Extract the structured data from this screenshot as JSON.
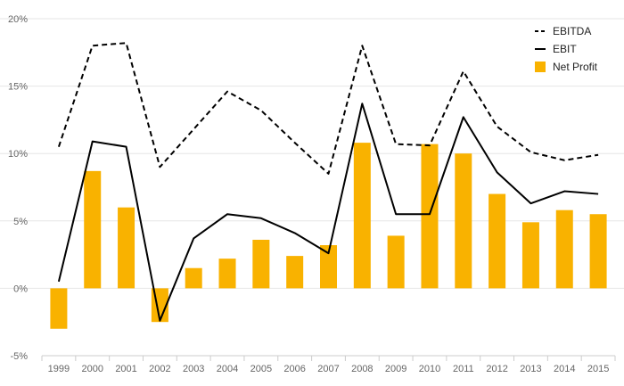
{
  "chart_data": {
    "type": "bar",
    "categories": [
      "1999",
      "2000",
      "2001",
      "2002",
      "2003",
      "2004",
      "2005",
      "2006",
      "2007",
      "2008",
      "2009",
      "2010",
      "2011",
      "2012",
      "2013",
      "2014",
      "2015"
    ],
    "series": [
      {
        "name": "EBITDA",
        "kind": "line",
        "style": "dashed",
        "color": "#000000",
        "values": [
          10.5,
          18.0,
          18.2,
          9.0,
          11.8,
          14.6,
          13.2,
          10.8,
          8.5,
          18.0,
          10.7,
          10.6,
          16.1,
          12.0,
          10.1,
          9.5,
          9.9
        ]
      },
      {
        "name": "EBIT",
        "kind": "line",
        "style": "solid",
        "color": "#000000",
        "values": [
          0.5,
          10.9,
          10.5,
          -2.4,
          3.7,
          5.5,
          5.2,
          4.1,
          2.6,
          13.7,
          5.5,
          5.5,
          12.7,
          8.6,
          6.3,
          7.2,
          7.0
        ]
      },
      {
        "name": "Net Profit",
        "kind": "bar",
        "color": "#F9B200",
        "values": [
          -3.0,
          8.7,
          6.0,
          -2.5,
          1.5,
          2.2,
          3.6,
          2.4,
          3.2,
          10.8,
          3.9,
          10.7,
          10.0,
          7.0,
          4.9,
          5.8,
          5.5
        ]
      }
    ],
    "y_ticks": [
      "20%",
      "15%",
      "10%",
      "5%",
      "0%",
      "-5%"
    ],
    "y_tick_values": [
      20,
      15,
      10,
      5,
      0,
      -5
    ],
    "ylim": [
      -5,
      20
    ],
    "xlabel": "",
    "ylabel": "",
    "title": "",
    "grid": true,
    "legend_position": "top-right",
    "colors": {
      "bar": "#F9B200",
      "grid": "#e6e6e6",
      "axis": "#cccccc",
      "tick_text": "#666666",
      "line": "#000000"
    }
  }
}
